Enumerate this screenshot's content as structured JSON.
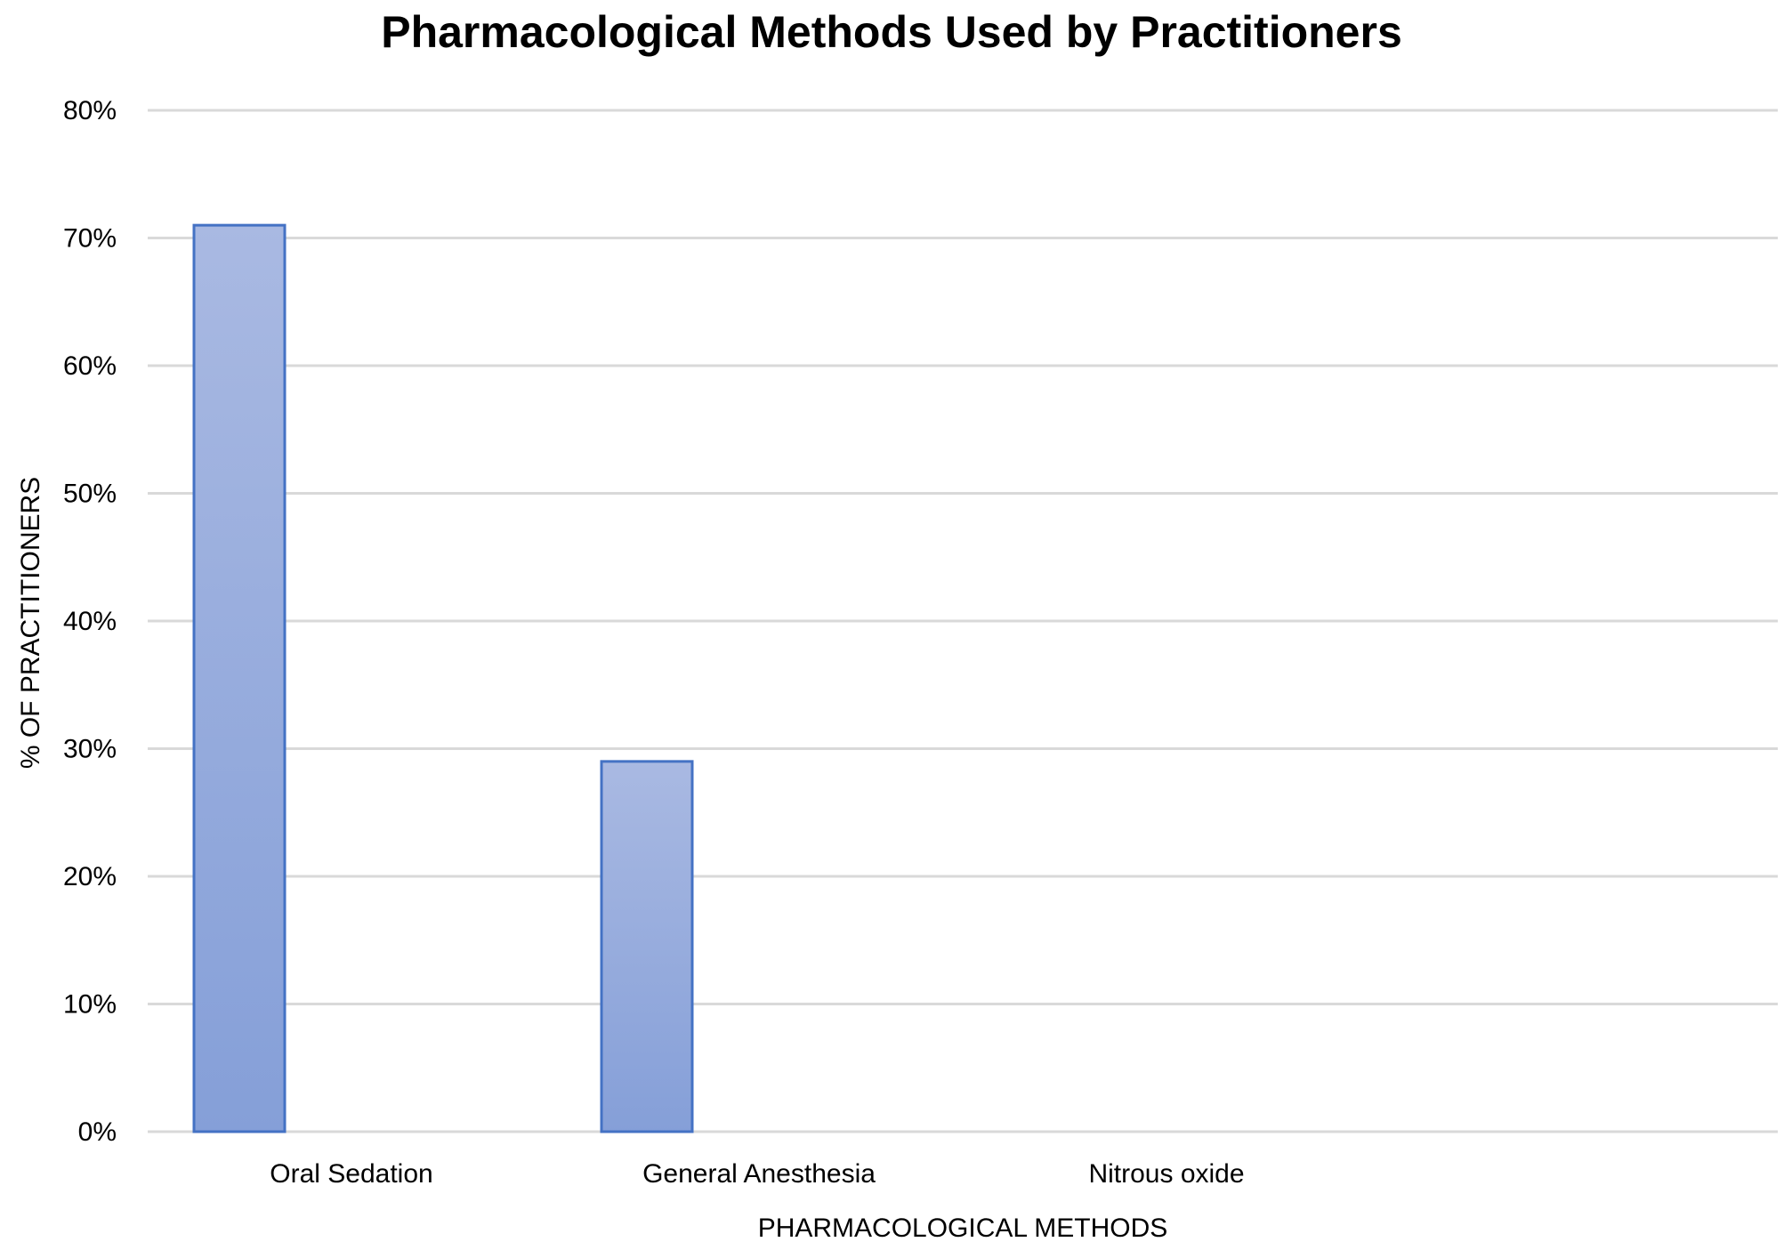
{
  "chart_data": {
    "type": "bar",
    "title": "Pharmacological Methods Used by Practitioners",
    "xlabel": "PHARMACOLOGICAL  METHODS",
    "ylabel": "% OF PRACTITIONERS",
    "categories": [
      "Oral Sedation",
      "General Anesthesia",
      "Nitrous oxide",
      ""
    ],
    "values": [
      0.71,
      0.29,
      null,
      null
    ],
    "ylim": [
      0,
      0.8
    ],
    "yticks": [
      0,
      0.1,
      0.2,
      0.3,
      0.4,
      0.5,
      0.6,
      0.7,
      0.8
    ],
    "ytick_labels": [
      "0%",
      "10%",
      "20%",
      "30%",
      "40%",
      "50%",
      "60%",
      "70%",
      "80%"
    ],
    "grid": true,
    "legend": "none",
    "colors": {
      "bar_fill_top": "#a9b9e2",
      "bar_fill_bottom": "#859fd8",
      "bar_stroke": "#4472c4",
      "gridline": "#d9d9d9"
    }
  }
}
